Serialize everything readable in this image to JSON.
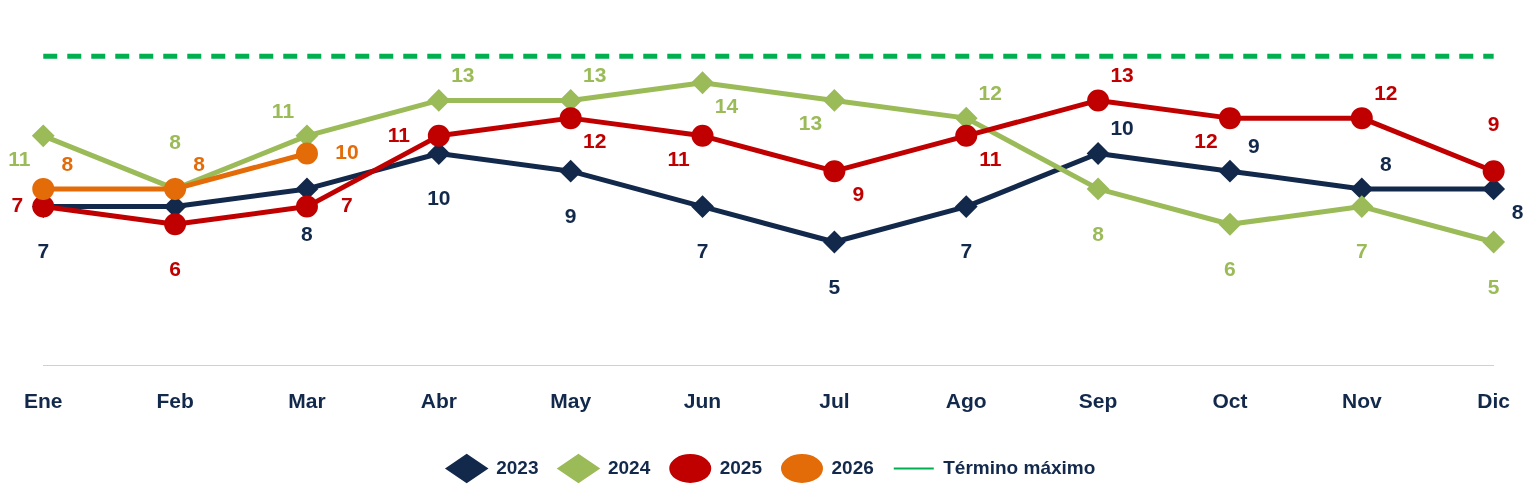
{
  "chart_data": {
    "type": "line",
    "categories": [
      "Ene",
      "Feb",
      "Mar",
      "Abr",
      "May",
      "Jun",
      "Jul",
      "Ago",
      "Sep",
      "Oct",
      "Nov",
      "Dic"
    ],
    "tick_labels": "x",
    "grid": false,
    "legend": "bottom",
    "series": [
      {
        "name": "2023",
        "color": "#13294b",
        "marker": "diamond",
        "values": [
          7,
          7,
          8,
          10,
          9,
          7,
          5,
          7,
          10,
          9,
          8,
          8
        ],
        "value_labels": [
          "7",
          null,
          "8",
          "10",
          "9",
          "7",
          "5",
          "7",
          "10",
          "9",
          "8",
          "8"
        ]
      },
      {
        "name": "2024",
        "color": "#9bbb59",
        "marker": "diamond",
        "values": [
          11,
          8,
          11,
          13,
          13,
          14,
          13,
          12,
          8,
          6,
          7,
          5
        ],
        "value_labels": [
          "11",
          "8",
          "11",
          "13",
          "13",
          "14",
          "13",
          "12",
          "8",
          "6",
          "7",
          "5"
        ]
      },
      {
        "name": "2025",
        "color": "#c00000",
        "marker": "circle",
        "values": [
          7,
          6,
          7,
          11,
          12,
          11,
          9,
          11,
          13,
          12,
          12,
          9
        ],
        "value_labels": [
          "7",
          "6",
          "7",
          "11",
          "12",
          "11",
          "9",
          "11",
          "13",
          "12",
          "12",
          "9"
        ]
      },
      {
        "name": "2026",
        "color": "#e36c09",
        "marker": "circle",
        "values": [
          8,
          8,
          10,
          null,
          null,
          null,
          null,
          null,
          null,
          null,
          null,
          null
        ],
        "value_labels": [
          "8",
          "8",
          "10",
          null,
          null,
          null,
          null,
          null,
          null,
          null,
          null,
          null
        ]
      },
      {
        "name": "Término máximo",
        "color": "#00b050",
        "marker": "none",
        "line_style": "dashed",
        "values": [
          15.5,
          15.5,
          15.5,
          15.5,
          15.5,
          15.5,
          15.5,
          15.5,
          15.5,
          15.5,
          15.5,
          15.5
        ]
      }
    ]
  }
}
